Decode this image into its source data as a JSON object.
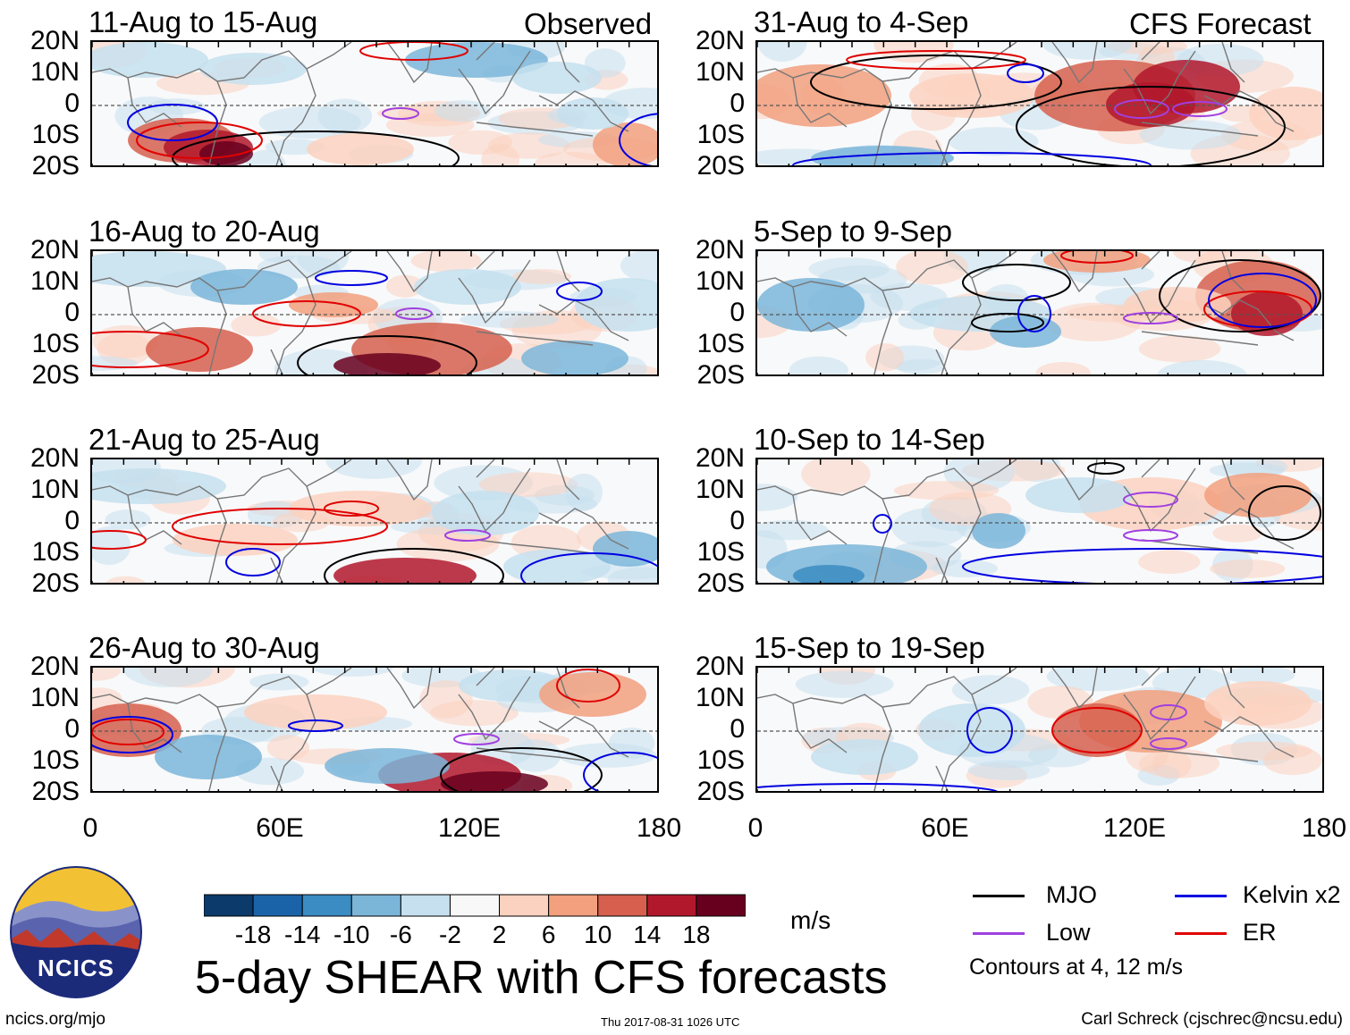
{
  "logo": {
    "text": "NCICS"
  },
  "labels": {
    "observed": "Observed",
    "forecast": "CFS Forecast"
  },
  "chart_data": {
    "type": "heatmap",
    "title": "5-day SHEAR with CFS forecasts",
    "units": "m/s",
    "lat_ticks": [
      "20N",
      "10N",
      "0",
      "10S",
      "20S"
    ],
    "lon_ticks": [
      "0",
      "60E",
      "120E",
      "180"
    ],
    "lon_range": [
      0,
      180
    ],
    "lat_range": [
      -20,
      20
    ],
    "colorbar": {
      "ticks": [
        "-18",
        "-14",
        "-10",
        "-6",
        "-2",
        "2",
        "6",
        "10",
        "14",
        "18"
      ],
      "colors": [
        "#0b3a6b",
        "#1b63a8",
        "#3b8cc2",
        "#7bb6d9",
        "#c6e0ef",
        "#f8f8f8",
        "#fbd2bf",
        "#f2a07e",
        "#d6604d",
        "#b2182b",
        "#67001f"
      ]
    },
    "panels": [
      {
        "id": "p1",
        "title": "11-Aug to 15-Aug",
        "source": "Observed"
      },
      {
        "id": "p2",
        "title": "16-Aug to 20-Aug",
        "source": "Observed"
      },
      {
        "id": "p3",
        "title": "21-Aug to 25-Aug",
        "source": "Observed"
      },
      {
        "id": "p4",
        "title": "26-Aug to 30-Aug",
        "source": "Observed"
      },
      {
        "id": "p5",
        "title": "31-Aug to 4-Sep",
        "source": "CFS Forecast"
      },
      {
        "id": "p6",
        "title": "5-Sep to 9-Sep",
        "source": "CFS Forecast"
      },
      {
        "id": "p7",
        "title": "10-Sep to 14-Sep",
        "source": "CFS Forecast"
      },
      {
        "id": "p8",
        "title": "15-Sep to 19-Sep",
        "source": "CFS Forecast"
      }
    ],
    "legend": [
      {
        "label": "MJO",
        "color": "#000000"
      },
      {
        "label": "Kelvin x2",
        "color": "#0000e0"
      },
      {
        "label": "Low",
        "color": "#a040e0"
      },
      {
        "label": "ER",
        "color": "#e00000"
      }
    ],
    "contour_note": "Contours at 4, 12 m/s"
  },
  "footer": {
    "url": "ncics.org/mjo",
    "date": "Thu 2017-08-31 1026 UTC",
    "credit": "Carl Schreck (cjschrec@ncsu.edu)"
  }
}
